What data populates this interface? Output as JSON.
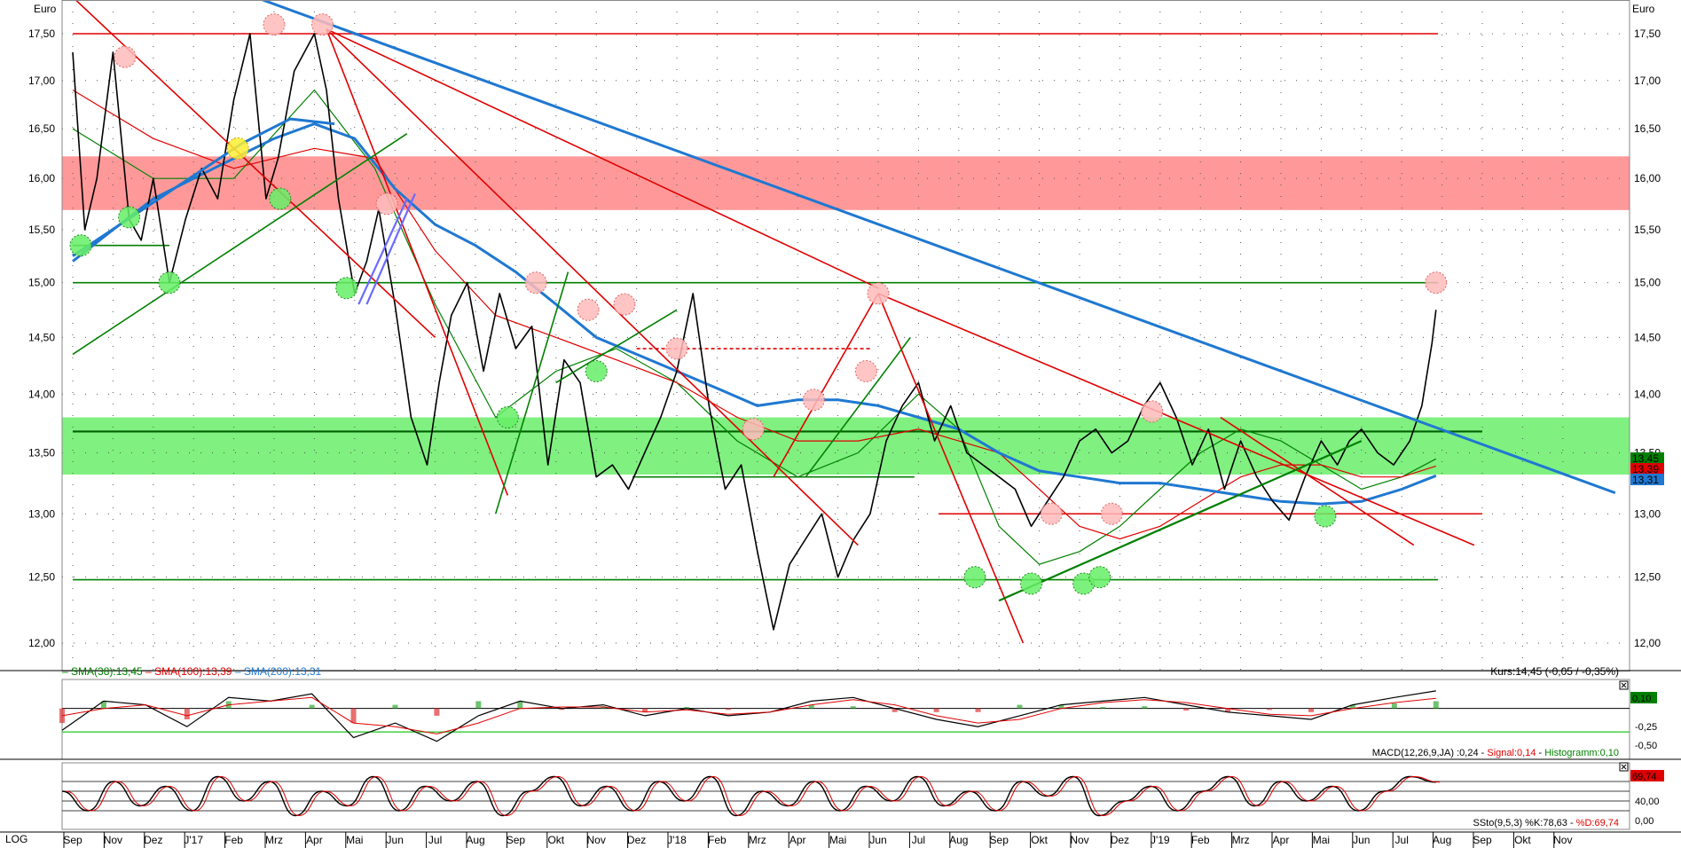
{
  "chart_data": {
    "type": "line",
    "currency_label": "Euro",
    "scale": "log",
    "scale_label": "LOG",
    "price_axis_ticks": [
      17.5,
      17.0,
      16.5,
      16.0,
      15.5,
      15.0,
      14.5,
      14.0,
      13.5,
      13.0,
      12.5,
      12.0
    ],
    "price_axis_labels": [
      "17,50",
      "17,00",
      "16,50",
      "16,00",
      "15,50",
      "15,00",
      "14,50",
      "14,00",
      "13,50",
      "13,00",
      "12,50",
      "12,00"
    ],
    "ylim": [
      11.85,
      18.2
    ],
    "x_month_labels": [
      "Sep",
      "Nov",
      "Dez",
      "J'17",
      "Feb",
      "Mrz",
      "Apr",
      "Mai",
      "Jun",
      "Jul",
      "Aug",
      "Sep",
      "Okt",
      "Nov",
      "Dez",
      "J'18",
      "Feb",
      "Mrz",
      "Apr",
      "Mai",
      "Jun",
      "Jul",
      "Aug",
      "Sep",
      "Okt",
      "Nov",
      "Dez",
      "J'19",
      "Feb",
      "Mrz",
      "Apr",
      "Mai",
      "Jun",
      "Jul",
      "Aug",
      "Sep",
      "Okt",
      "Nov"
    ],
    "price_series": {
      "name": "Kurs",
      "x_months": [
        0,
        0.3,
        0.6,
        1.0,
        1.4,
        1.7,
        2.0,
        2.4,
        2.8,
        3.2,
        3.6,
        4.0,
        4.4,
        4.8,
        5.1,
        5.5,
        6.0,
        6.3,
        6.6,
        7.0,
        7.3,
        7.6,
        8.0,
        8.4,
        8.8,
        9.1,
        9.4,
        9.8,
        10.2,
        10.6,
        11.0,
        11.4,
        11.8,
        12.2,
        12.6,
        13.0,
        13.4,
        13.8,
        14.2,
        14.6,
        15.0,
        15.4,
        15.8,
        16.2,
        16.6,
        17.0,
        17.4,
        17.8,
        18.2,
        18.6,
        19.0,
        19.4,
        19.8,
        20.2,
        20.6,
        21.0,
        21.4,
        21.8,
        22.2,
        22.6,
        23.0,
        23.4,
        23.8,
        24.2,
        24.6,
        25.0,
        25.4,
        25.8,
        26.2,
        26.6,
        27.0,
        27.4,
        27.8,
        28.2,
        28.6,
        29.0,
        29.4,
        29.8,
        30.2,
        30.6,
        31.0,
        31.4,
        31.7,
        32.0,
        32.4,
        32.8,
        33.2,
        33.5,
        33.75,
        33.85
      ],
      "values": [
        17.3,
        15.5,
        16.0,
        17.3,
        15.6,
        15.4,
        16.0,
        15.0,
        15.6,
        16.1,
        15.8,
        16.8,
        17.5,
        15.8,
        16.2,
        17.1,
        17.5,
        16.9,
        15.8,
        14.9,
        15.2,
        15.7,
        14.8,
        13.8,
        13.4,
        14.1,
        14.7,
        15.0,
        14.2,
        14.9,
        14.4,
        14.6,
        13.4,
        14.3,
        14.1,
        13.3,
        13.4,
        13.2,
        13.5,
        13.8,
        14.2,
        14.9,
        13.9,
        13.2,
        13.4,
        12.7,
        12.1,
        12.6,
        12.8,
        13.0,
        12.5,
        12.8,
        13.0,
        13.6,
        13.9,
        14.1,
        13.6,
        13.9,
        13.5,
        13.4,
        13.3,
        13.2,
        12.9,
        13.1,
        13.3,
        13.6,
        13.7,
        13.5,
        13.6,
        13.9,
        14.1,
        13.8,
        13.4,
        13.7,
        13.2,
        13.6,
        13.3,
        13.1,
        12.95,
        13.3,
        13.6,
        13.4,
        13.6,
        13.7,
        13.5,
        13.4,
        13.6,
        13.9,
        14.45,
        14.75
      ]
    },
    "sma_series": [
      {
        "name": "SMA(38)",
        "label": "SMA(38):13,45",
        "color": "#008000",
        "value_label": "13,45",
        "x_months": [
          0,
          2,
          4,
          6,
          7.5,
          9,
          10.5,
          12,
          13.5,
          15,
          16.5,
          18,
          19.5,
          21,
          22,
          23,
          24,
          25,
          26,
          27,
          28,
          29,
          30,
          31,
          32,
          33,
          33.85
        ],
        "values": [
          16.5,
          16.0,
          16.0,
          16.9,
          16.1,
          14.8,
          13.8,
          14.2,
          14.4,
          14.1,
          13.6,
          13.3,
          13.5,
          14.0,
          13.7,
          12.9,
          12.6,
          12.7,
          12.9,
          13.2,
          13.5,
          13.7,
          13.6,
          13.4,
          13.2,
          13.3,
          13.45
        ]
      },
      {
        "name": "SMA(100)",
        "label": "SMA(100):13,39",
        "color": "#e00000",
        "value_label": "13,39",
        "x_months": [
          0,
          2,
          4,
          6,
          7.5,
          9,
          10.5,
          12,
          13.5,
          15,
          16.5,
          18,
          19.5,
          21,
          22,
          23,
          24,
          25,
          26,
          27,
          28,
          29,
          30,
          31,
          32,
          33,
          33.85
        ],
        "values": [
          16.9,
          16.4,
          16.1,
          16.3,
          16.2,
          15.3,
          14.7,
          14.5,
          14.3,
          14.1,
          13.8,
          13.6,
          13.6,
          13.7,
          13.6,
          13.5,
          13.2,
          12.9,
          12.8,
          12.9,
          13.1,
          13.3,
          13.4,
          13.4,
          13.3,
          13.3,
          13.39
        ]
      },
      {
        "name": "SMA(200)",
        "label": "SMA(200):13,31",
        "color": "#1f78d1",
        "value_label": "13,31",
        "x_months": [
          0,
          1,
          2,
          3,
          4,
          5,
          6,
          7,
          8,
          9,
          10,
          11,
          12,
          13,
          14,
          15,
          16,
          17,
          18,
          19,
          20,
          21,
          22,
          23,
          24,
          25,
          26,
          27,
          28,
          29,
          30,
          31,
          32,
          33,
          33.85
        ],
        "values": [
          15.2,
          15.5,
          15.8,
          16.0,
          16.2,
          16.4,
          16.55,
          16.4,
          15.9,
          15.55,
          15.35,
          15.1,
          14.8,
          14.5,
          14.35,
          14.2,
          14.05,
          13.9,
          13.95,
          13.95,
          13.9,
          13.8,
          13.7,
          13.5,
          13.35,
          13.3,
          13.25,
          13.25,
          13.2,
          13.15,
          13.1,
          13.08,
          13.1,
          13.2,
          13.31
        ]
      }
    ],
    "zones": [
      {
        "name": "resistance-zone",
        "low": 15.69,
        "high": 16.22,
        "color": "#ff9999"
      },
      {
        "name": "support-zone",
        "low": 13.32,
        "high": 13.8,
        "color": "#80f080"
      }
    ],
    "horizontal_lines": [
      {
        "value": 17.5,
        "color": "#e00000",
        "x_months": [
          0,
          33.9
        ]
      },
      {
        "value": 15.0,
        "color": "#008000",
        "x_months": [
          0,
          33.9
        ]
      },
      {
        "value": 13.68,
        "color": "#006000",
        "x_months": [
          0,
          35.0
        ]
      },
      {
        "value": 12.48,
        "color": "#008000",
        "x_months": [
          0,
          33.9
        ]
      },
      {
        "value": 13.0,
        "color": "#e00000",
        "x_months": [
          21.5,
          35.0
        ]
      },
      {
        "value": 13.3,
        "color": "#008000",
        "x_months": [
          13.9,
          20.9
        ]
      },
      {
        "value": 15.35,
        "color": "#008000",
        "x_months": [
          0,
          2.4
        ]
      },
      {
        "value": 14.4,
        "color": "#e00000",
        "dashed": true,
        "x_months": [
          14.0,
          19.8
        ]
      }
    ],
    "trend_lines": [
      {
        "color": "#1f78d1",
        "width": 3,
        "points": [
          [
            2.1,
            18.3
          ],
          [
            38.3,
            13.17
          ]
        ]
      },
      {
        "color": "#1f78d1",
        "width": 3,
        "points": [
          [
            0,
            15.25
          ],
          [
            4.2,
            16.35
          ],
          [
            5.4,
            16.6
          ],
          [
            6.5,
            16.55
          ]
        ]
      },
      {
        "color": "#e00000",
        "width": 1.6,
        "points": [
          [
            0,
            17.9
          ],
          [
            9.0,
            14.5
          ]
        ]
      },
      {
        "color": "#e00000",
        "width": 1.6,
        "points": [
          [
            6.3,
            17.55
          ],
          [
            20.0,
            14.95
          ]
        ]
      },
      {
        "color": "#e00000",
        "width": 1.6,
        "points": [
          [
            6.3,
            17.55
          ],
          [
            19.5,
            12.75
          ]
        ]
      },
      {
        "color": "#e00000",
        "width": 1.6,
        "points": [
          [
            6.3,
            17.55
          ],
          [
            10.8,
            13.15
          ]
        ]
      },
      {
        "color": "#e00000",
        "width": 1.6,
        "points": [
          [
            20.0,
            14.9
          ],
          [
            34.8,
            12.75
          ]
        ]
      },
      {
        "color": "#e00000",
        "width": 1.6,
        "points": [
          [
            20.0,
            14.9
          ],
          [
            23.6,
            12.0
          ]
        ]
      },
      {
        "color": "#e00000",
        "width": 1.6,
        "points": [
          [
            20.0,
            14.9
          ],
          [
            17.4,
            13.3
          ]
        ]
      },
      {
        "color": "#e00000",
        "width": 1.6,
        "points": [
          [
            28.5,
            13.8
          ],
          [
            33.3,
            12.75
          ]
        ]
      },
      {
        "color": "#008000",
        "width": 1.6,
        "points": [
          [
            0,
            14.35
          ],
          [
            8.3,
            16.45
          ]
        ]
      },
      {
        "color": "#008000",
        "width": 1.6,
        "points": [
          [
            10.5,
            13.0
          ],
          [
            12.3,
            15.1
          ]
        ]
      },
      {
        "color": "#008000",
        "width": 1.6,
        "points": [
          [
            12.0,
            14.1
          ],
          [
            15.0,
            14.75
          ]
        ]
      },
      {
        "color": "#008000",
        "width": 1.6,
        "points": [
          [
            18.2,
            13.3
          ],
          [
            20.8,
            14.5
          ]
        ]
      },
      {
        "color": "#008000",
        "width": 2.2,
        "points": [
          [
            23.0,
            12.32
          ],
          [
            32.0,
            13.6
          ]
        ]
      },
      {
        "color": "#6a6aff",
        "width": 2.2,
        "points": [
          [
            7.1,
            14.8
          ],
          [
            8.3,
            15.8
          ]
        ]
      },
      {
        "color": "#6a6aff",
        "width": 2.2,
        "points": [
          [
            7.3,
            14.8
          ],
          [
            8.5,
            15.85
          ]
        ]
      }
    ],
    "markers": [
      {
        "x": 0.2,
        "value": 15.35,
        "color": "green"
      },
      {
        "x": 1.4,
        "value": 15.62,
        "color": "green"
      },
      {
        "x": 2.4,
        "value": 15.0,
        "color": "green"
      },
      {
        "x": 5.15,
        "value": 15.8,
        "color": "green"
      },
      {
        "x": 6.8,
        "value": 14.95,
        "color": "green"
      },
      {
        "x": 10.8,
        "value": 13.8,
        "color": "green"
      },
      {
        "x": 13.0,
        "value": 14.2,
        "color": "green"
      },
      {
        "x": 22.4,
        "value": 12.5,
        "color": "green"
      },
      {
        "x": 23.8,
        "value": 12.45,
        "color": "green"
      },
      {
        "x": 25.1,
        "value": 12.45,
        "color": "green"
      },
      {
        "x": 25.5,
        "value": 12.5,
        "color": "green"
      },
      {
        "x": 31.1,
        "value": 12.98,
        "color": "green"
      },
      {
        "x": 1.3,
        "value": 17.25,
        "color": "red"
      },
      {
        "x": 5.0,
        "value": 17.6,
        "color": "red"
      },
      {
        "x": 6.2,
        "value": 17.6,
        "color": "red"
      },
      {
        "x": 7.8,
        "value": 15.75,
        "color": "red"
      },
      {
        "x": 11.5,
        "value": 15.0,
        "color": "red"
      },
      {
        "x": 12.8,
        "value": 14.75,
        "color": "red"
      },
      {
        "x": 13.7,
        "value": 14.8,
        "color": "red"
      },
      {
        "x": 15.0,
        "value": 14.4,
        "color": "red"
      },
      {
        "x": 16.9,
        "value": 13.7,
        "color": "red"
      },
      {
        "x": 18.4,
        "value": 13.95,
        "color": "red"
      },
      {
        "x": 19.7,
        "value": 14.2,
        "color": "red"
      },
      {
        "x": 20.0,
        "value": 14.9,
        "color": "red"
      },
      {
        "x": 24.3,
        "value": 13.0,
        "color": "red"
      },
      {
        "x": 25.8,
        "value": 13.0,
        "color": "red"
      },
      {
        "x": 26.8,
        "value": 13.85,
        "color": "red"
      },
      {
        "x": 33.85,
        "value": 15.0,
        "color": "red"
      },
      {
        "x": 4.1,
        "value": 16.3,
        "color": "yellow"
      }
    ],
    "legend": [
      {
        "text": "SMA(38):13,45",
        "color": "#008000"
      },
      {
        "text": "SMA(100):13,39",
        "color": "#e00000"
      },
      {
        "text": "SMA(200):13,31",
        "color": "#1f78d1"
      }
    ],
    "kurs_label": "Kurs:14,45 (-0,05 / -0,35%)",
    "last_price_badges": [
      {
        "text": "13,45",
        "bg": "#008000",
        "value": 13.45
      },
      {
        "text": "13,39",
        "bg": "#e00000",
        "value": 13.39
      },
      {
        "text": "13,31",
        "bg": "#1f78d1",
        "value": 13.31
      }
    ],
    "macd": {
      "label": "MACD(12,26,9,JA) :0,24",
      "signal_label": "Signal:0,14",
      "histogram_label": "Histogramm:0,10",
      "axis_labels": [
        "-0,25",
        "-0,50"
      ],
      "ylim": [
        -0.6,
        0.3
      ],
      "current_value": "0,24",
      "histogram_value": "0,10",
      "macd_values": [
        -0.3,
        0.1,
        0.05,
        -0.25,
        0.15,
        0.1,
        0.2,
        -0.4,
        -0.2,
        -0.45,
        -0.1,
        0.1,
        0.0,
        0.05,
        -0.1,
        0.0,
        -0.1,
        -0.05,
        0.1,
        0.15,
        0.0,
        -0.15,
        -0.25,
        -0.1,
        0.05,
        0.1,
        0.15,
        0.05,
        -0.05,
        -0.1,
        -0.15,
        0.05,
        0.15,
        0.24
      ],
      "signal_values": [
        -0.1,
        0.0,
        0.05,
        -0.1,
        0.05,
        0.1,
        0.15,
        -0.2,
        -0.25,
        -0.35,
        -0.2,
        0.0,
        0.02,
        0.02,
        -0.05,
        -0.02,
        -0.08,
        -0.05,
        0.05,
        0.12,
        0.05,
        -0.1,
        -0.2,
        -0.15,
        0.0,
        0.08,
        0.12,
        0.08,
        0.0,
        -0.08,
        -0.1,
        0.0,
        0.08,
        0.14
      ]
    },
    "stoch": {
      "label": "SSto(9,5,3) %K:78,63",
      "d_label": "%D:69,74",
      "axis_labels": [
        "40,00",
        "0,00"
      ],
      "current_value": "69,74",
      "k_values": [
        60,
        20,
        80,
        30,
        70,
        20,
        90,
        40,
        80,
        10,
        60,
        30,
        90,
        20,
        70,
        40,
        80,
        10,
        60,
        90,
        30,
        70,
        20,
        80,
        40,
        90,
        10,
        60,
        30,
        80,
        20,
        70,
        40,
        90,
        30,
        60,
        20,
        80,
        50,
        90,
        10,
        40,
        70,
        20,
        60,
        90,
        30,
        80,
        40,
        70,
        20,
        60,
        90,
        78.6
      ]
    }
  }
}
